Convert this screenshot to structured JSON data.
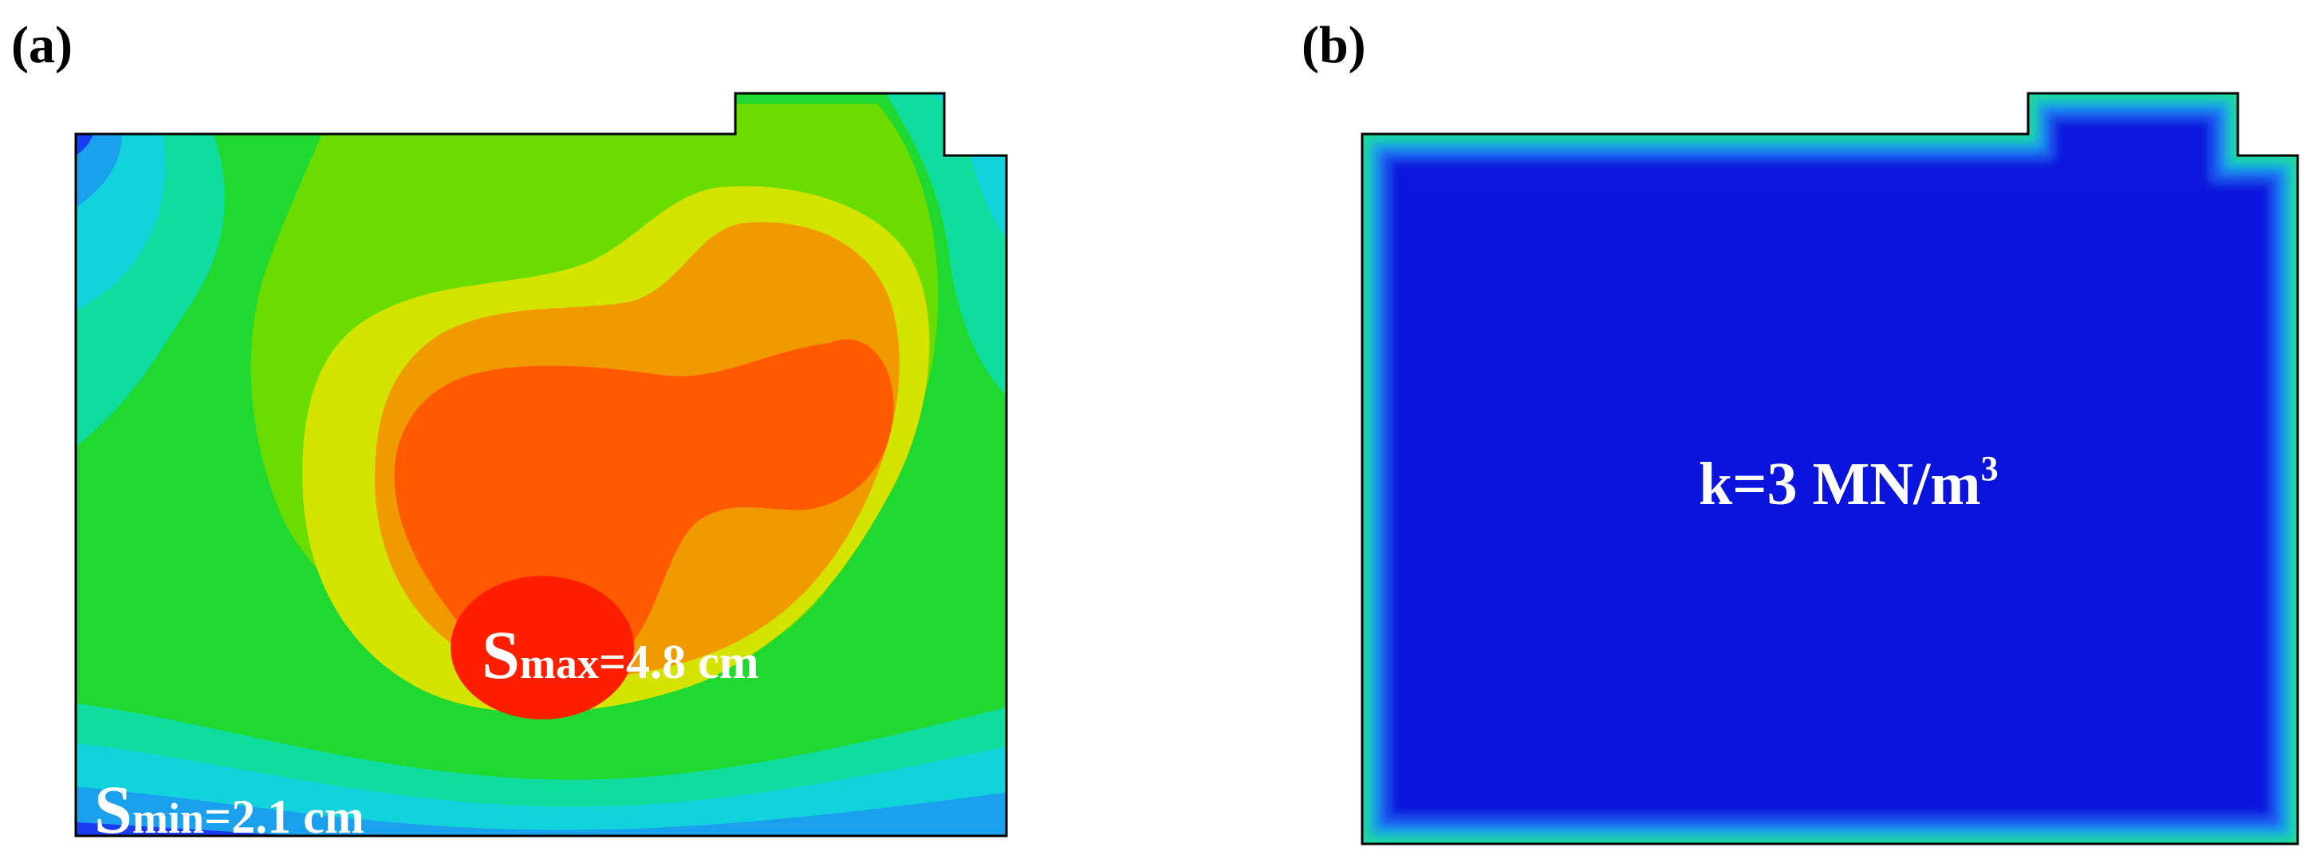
{
  "panels": {
    "a": {
      "tag": "(a)",
      "max_label": {
        "symbol": "S",
        "sub": "max",
        "value": "=4.8 cm"
      },
      "min_label": {
        "symbol": "S",
        "sub": "min",
        "value": "=2.1 cm"
      },
      "contour_colors": [
        "#1a3cf0",
        "#1aa0ec",
        "#12d2dc",
        "#10dca0",
        "#20d830",
        "#6adc00",
        "#d4e400",
        "#f09a00",
        "#ff5a00",
        "#ff1e00"
      ]
    },
    "b": {
      "tag": "(b)",
      "k_label": {
        "text": "k=3 MN/m",
        "sup": "3"
      },
      "colors": {
        "field": "#0a14dc",
        "edge": "#1a5af0",
        "edge2": "#17a8e8",
        "edge3": "#20d8a0"
      }
    }
  }
}
